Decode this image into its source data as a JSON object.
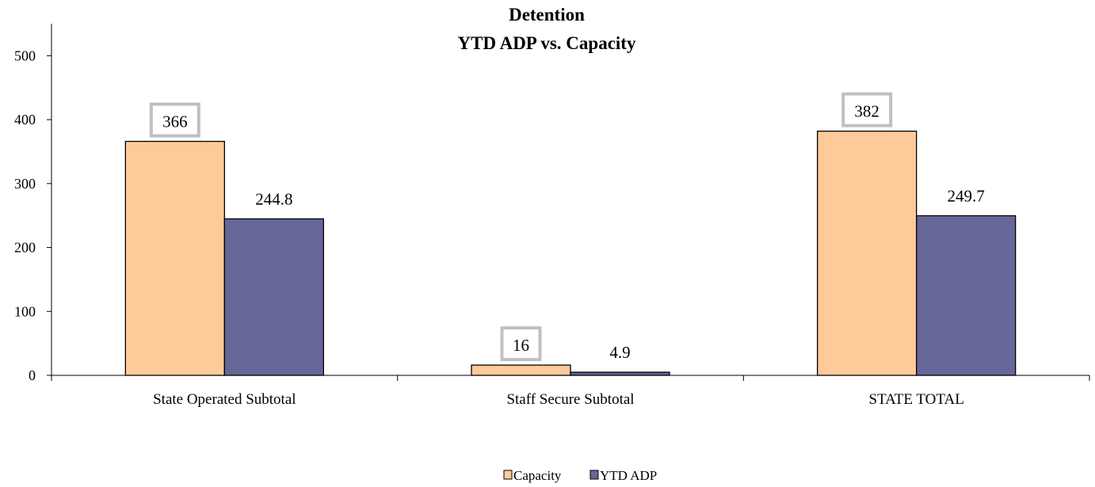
{
  "chart_data": {
    "type": "bar",
    "title": [
      "Detention",
      "YTD ADP vs. Capacity"
    ],
    "categories": [
      "State Operated Subtotal",
      "Staff Secure Subtotal",
      "STATE TOTAL"
    ],
    "series": [
      {
        "name": "Capacity",
        "values": [
          366,
          16,
          382
        ],
        "color": "#FFCA99",
        "labels": [
          "366",
          "16",
          "382"
        ],
        "label_boxed": true
      },
      {
        "name": "YTD ADP",
        "values": [
          244.8,
          4.9,
          249.7
        ],
        "color": "#666699",
        "labels": [
          "244.8",
          "4.9",
          "249.7"
        ],
        "label_boxed": false
      }
    ],
    "ylim": [
      0,
      550
    ],
    "yticks": [
      0,
      100,
      200,
      300,
      400,
      500
    ],
    "ytick_labels": [
      "0",
      "100",
      "200",
      "300",
      "400",
      "500"
    ],
    "xlabel": "",
    "ylabel": "",
    "grid": false,
    "legend_position": "bottom"
  }
}
